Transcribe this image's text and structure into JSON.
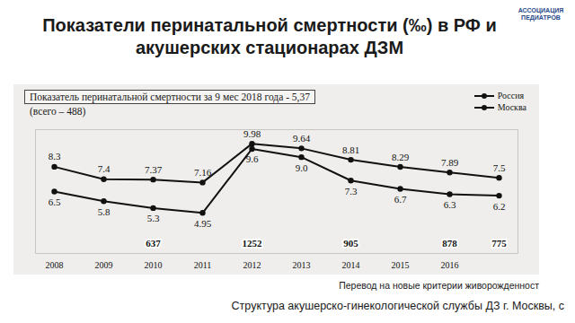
{
  "slide_title": "Показатели перинатальной смертности (‰) в РФ и акушерских стационарах ДЗМ",
  "logo_text": "АССОЦИАЦИЯ ПЕДИАТРОВ",
  "chart_data": {
    "type": "line",
    "subtitle": "Показатель перинатальной смертности за 9 мес 2018 года - 5,37",
    "note": "(всего – 488)",
    "categories": [
      "2008",
      "2009",
      "2010",
      "2011",
      "2012",
      "2013",
      "2014",
      "2015",
      "2016",
      null
    ],
    "series": [
      {
        "name": "Россия",
        "color": "#111111",
        "marker": "circle",
        "values": [
          8.3,
          7.4,
          7.37,
          7.16,
          9.98,
          9.64,
          8.81,
          8.29,
          7.89,
          7.5
        ]
      },
      {
        "name": "Москва",
        "color": "#111111",
        "marker": "circle",
        "values": [
          6.5,
          5.8,
          5.3,
          4.95,
          9.6,
          9.0,
          7.3,
          6.7,
          6.3,
          6.2
        ],
        "value_labels": [
          "6.5",
          "5.8",
          "5.3",
          "4.95",
          "9.6",
          "9.0",
          "7.3",
          "6.7",
          "6.3",
          "6.2"
        ]
      }
    ],
    "callouts": [
      null,
      null,
      637,
      null,
      1252,
      null,
      905,
      null,
      878,
      775
    ],
    "ylim": [
      2,
      11
    ],
    "yticks": [],
    "grid": false,
    "data_labels": true,
    "tick_labels": "x",
    "legend": "top-right"
  },
  "captions": [
    "Перевод на новые критерии живорожденност",
    "Структура акушерско-гинекологической службы ДЗ г. Москвы, с"
  ]
}
